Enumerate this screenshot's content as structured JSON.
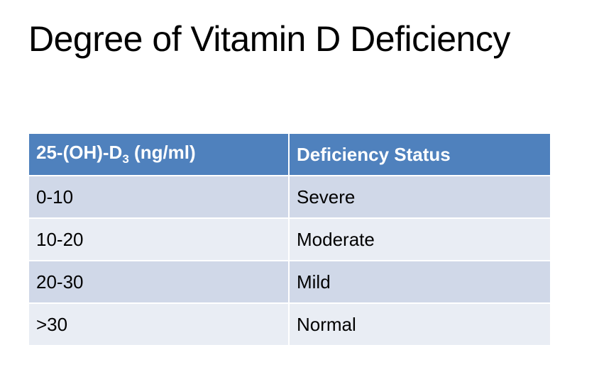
{
  "title": "Degree of Vitamin D Deficiency",
  "table": {
    "header": {
      "col1_pre": "25-(OH)-D",
      "col1_sub": "3",
      "col1_post": " (ng/ml)",
      "col2": "Deficiency Status"
    },
    "rows": [
      {
        "range": "0-10",
        "status": "Severe"
      },
      {
        "range": "10-20",
        "status": "Moderate"
      },
      {
        "range": "20-30",
        "status": "Mild"
      },
      {
        "range": ">30",
        "status": "Normal"
      }
    ],
    "colors": {
      "header_bg": "#4f81bd",
      "row_odd_bg": "#d0d8e8",
      "row_even_bg": "#e9edf4"
    }
  }
}
